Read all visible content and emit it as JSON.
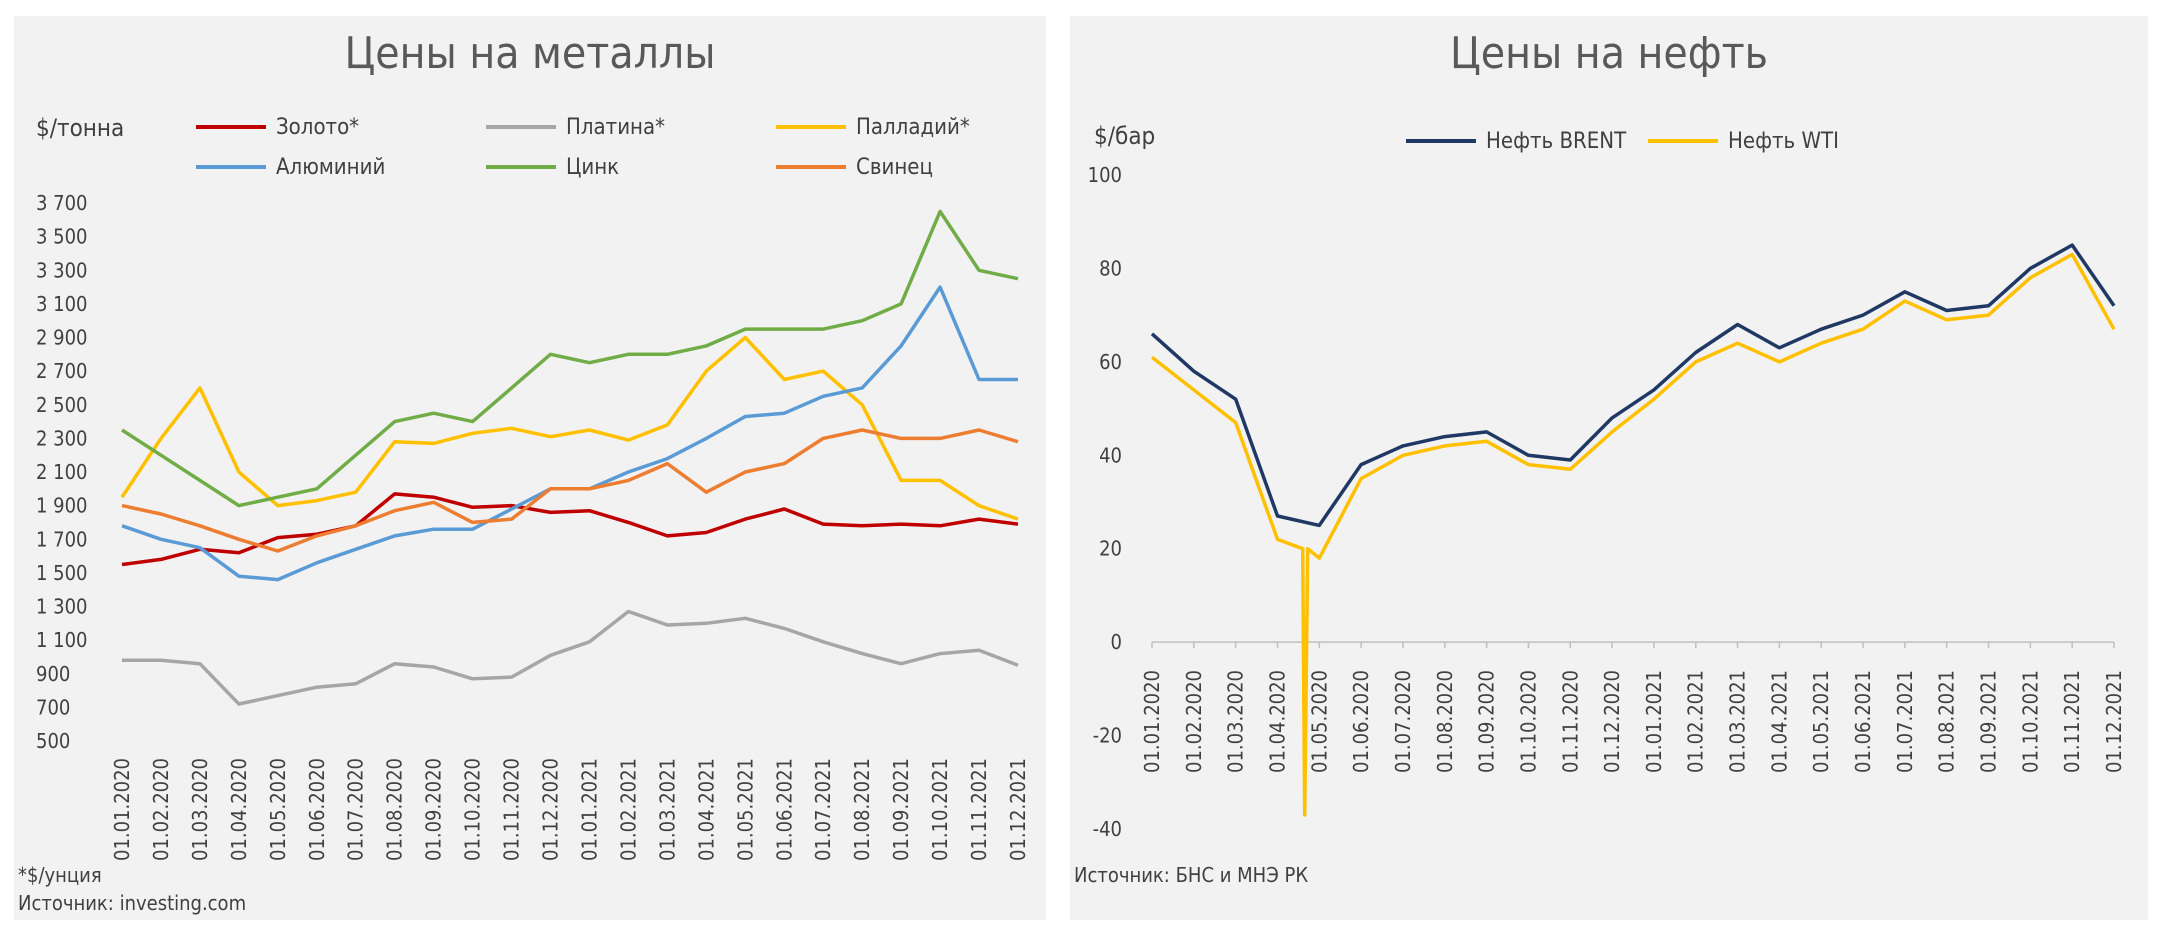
{
  "chart_data": [
    {
      "type": "line",
      "title": "Цены на металлы",
      "ylabel": "$/тонна",
      "ylim": [
        500,
        3700
      ],
      "yticks": [
        500,
        700,
        900,
        1100,
        1300,
        1500,
        1700,
        1900,
        2100,
        2300,
        2500,
        2700,
        2900,
        3100,
        3300,
        3500,
        3700
      ],
      "ytick_labels": [
        "500",
        "700",
        "900",
        "1 100",
        "1 300",
        "1 500",
        "1 700",
        "1 900",
        "2 100",
        "2 300",
        "2 500",
        "2 700",
        "2 900",
        "3 100",
        "3 300",
        "3 500",
        "3 700"
      ],
      "xtick_labels": [
        "01.01.2020",
        "01.02.2020",
        "01.03.2020",
        "01.04.2020",
        "01.05.2020",
        "01.06.2020",
        "01.07.2020",
        "01.08.2020",
        "01.09.2020",
        "01.10.2020",
        "01.11.2020",
        "01.12.2020",
        "01.01.2021",
        "01.02.2021",
        "01.03.2021",
        "01.04.2021",
        "01.05.2021",
        "01.06.2021",
        "01.07.2021",
        "01.08.2021",
        "01.09.2021",
        "01.10.2021",
        "01.11.2021",
        "01.12.2021"
      ],
      "x": [
        "2020-01",
        "2020-02",
        "2020-03",
        "2020-04",
        "2020-05",
        "2020-06",
        "2020-07",
        "2020-08",
        "2020-09",
        "2020-10",
        "2020-11",
        "2020-12",
        "2021-01",
        "2021-02",
        "2021-03",
        "2021-04",
        "2021-05",
        "2021-06",
        "2021-07",
        "2021-08",
        "2021-09",
        "2021-10",
        "2021-11",
        "2021-12"
      ],
      "legend_position": "top",
      "series": [
        {
          "name": "Золото*",
          "color": "#c00000",
          "values": [
            1550,
            1580,
            1640,
            1620,
            1710,
            1730,
            1780,
            1970,
            1950,
            1890,
            1900,
            1860,
            1870,
            1800,
            1720,
            1740,
            1820,
            1880,
            1790,
            1780,
            1790,
            1780,
            1820,
            1790
          ]
        },
        {
          "name": "Платина*",
          "color": "#a6a6a6",
          "values": [
            980,
            980,
            960,
            720,
            770,
            820,
            840,
            960,
            940,
            870,
            880,
            1010,
            1090,
            1270,
            1190,
            1200,
            1230,
            1170,
            1090,
            1020,
            960,
            1020,
            1040,
            950
          ]
        },
        {
          "name": "Палладий*",
          "color": "#ffc000",
          "values": [
            1950,
            2300,
            2600,
            2100,
            1900,
            1930,
            1980,
            2280,
            2270,
            2330,
            2360,
            2310,
            2350,
            2290,
            2380,
            2700,
            2900,
            2650,
            2700,
            2500,
            2050,
            2050,
            1900,
            1820
          ]
        },
        {
          "name": "Алюминий",
          "color": "#5b9bd5",
          "values": [
            1780,
            1700,
            1650,
            1480,
            1460,
            1560,
            1640,
            1720,
            1760,
            1760,
            1880,
            2000,
            2000,
            2100,
            2180,
            2300,
            2430,
            2450,
            2550,
            2600,
            2850,
            3200,
            2650,
            2650
          ]
        },
        {
          "name": "Цинк",
          "color": "#70ad47",
          "values": [
            2350,
            2200,
            2050,
            1900,
            1950,
            2000,
            2200,
            2400,
            2450,
            2400,
            2600,
            2800,
            2750,
            2800,
            2800,
            2850,
            2950,
            2950,
            2950,
            3000,
            3100,
            3650,
            3300,
            3250
          ]
        },
        {
          "name": "Свинец",
          "color": "#ed7d31",
          "values": [
            1900,
            1850,
            1780,
            1700,
            1630,
            1720,
            1780,
            1870,
            1920,
            1800,
            1820,
            2000,
            2000,
            2050,
            2150,
            1980,
            2100,
            2150,
            2300,
            2350,
            2300,
            2300,
            2350,
            2280
          ]
        }
      ]
    },
    {
      "type": "line",
      "title": "Цены на нефть",
      "ylabel": "$/бар",
      "ylim": [
        -40,
        100
      ],
      "yticks": [
        -40,
        -20,
        0,
        20,
        40,
        60,
        80,
        100
      ],
      "ytick_labels": [
        "-40",
        "-20",
        "0",
        "20",
        "40",
        "60",
        "80",
        "100"
      ],
      "xtick_labels": [
        "01.01.2020",
        "01.02.2020",
        "01.03.2020",
        "01.04.2020",
        "01.05.2020",
        "01.06.2020",
        "01.07.2020",
        "01.08.2020",
        "01.09.2020",
        "01.10.2020",
        "01.11.2020",
        "01.12.2020",
        "01.01.2021",
        "01.02.2021",
        "01.03.2021",
        "01.04.2021",
        "01.05.2021",
        "01.06.2021",
        "01.07.2021",
        "01.08.2021",
        "01.09.2021",
        "01.10.2021",
        "01.11.2021",
        "01.12.2021"
      ],
      "x": [
        "2020-01",
        "2020-02",
        "2020-03",
        "2020-04",
        "2020-05",
        "2020-06",
        "2020-07",
        "2020-08",
        "2020-09",
        "2020-10",
        "2020-11",
        "2020-12",
        "2021-01",
        "2021-02",
        "2021-03",
        "2021-04",
        "2021-05",
        "2021-06",
        "2021-07",
        "2021-08",
        "2021-09",
        "2021-10",
        "2021-11",
        "2021-12"
      ],
      "legend_position": "top",
      "series": [
        {
          "name": "Нефть BRENT",
          "color": "#1f3864",
          "values": [
            66,
            58,
            52,
            27,
            25,
            38,
            42,
            44,
            45,
            40,
            39,
            48,
            54,
            62,
            68,
            63,
            67,
            70,
            75,
            71,
            72,
            80,
            85,
            72
          ]
        },
        {
          "name": "Нефть WTI",
          "color": "#ffc000",
          "values": [
            61,
            54,
            47,
            22,
            18,
            35,
            40,
            42,
            43,
            38,
            37,
            45,
            52,
            60,
            64,
            60,
            64,
            67,
            73,
            69,
            70,
            78,
            83,
            67
          ]
        }
      ],
      "annotations": [
        {
          "x": "2020-04-20",
          "y": -37,
          "series": "Нефть WTI"
        }
      ]
    }
  ],
  "notes": {
    "left_footnote": "*$/унция",
    "left_source": "Источник: investing.com",
    "right_source": "Источник: БНС и МНЭ РК"
  }
}
